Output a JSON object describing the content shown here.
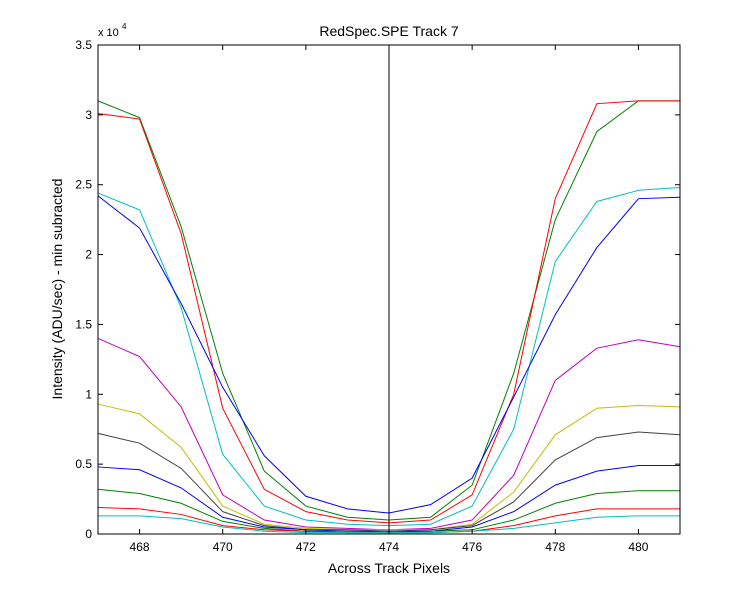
{
  "chart_data": {
    "type": "line",
    "title": "RedSpec.SPE   Track 7",
    "xlabel": "Across Track Pixels",
    "ylabel": "Intensity (ADU/sec) - min subracted",
    "y_exponent_label": "x 10",
    "y_exponent_power": "4",
    "xlim": [
      467,
      481
    ],
    "ylim": [
      0,
      3.5
    ],
    "x_ticks": [
      468,
      470,
      472,
      474,
      476,
      478,
      480
    ],
    "y_ticks": [
      0,
      0.5,
      1,
      1.5,
      2,
      2.5,
      3,
      3.5
    ],
    "y_tick_labels": [
      "0",
      "0.5",
      "1",
      "1.5",
      "2",
      "2.5",
      "3",
      "3.5"
    ],
    "grid": false,
    "vertical_line_x": 474,
    "x": [
      467,
      468,
      469,
      470,
      471,
      472,
      473,
      474,
      475,
      476,
      477,
      478,
      479,
      480,
      481
    ],
    "series": [
      {
        "color": "#008000",
        "values": [
          3.1,
          2.98,
          2.2,
          1.15,
          0.45,
          0.2,
          0.12,
          0.1,
          0.12,
          0.35,
          1.15,
          2.25,
          2.88,
          3.1,
          3.1
        ]
      },
      {
        "color": "#ff0000",
        "values": [
          3.01,
          2.97,
          2.15,
          0.9,
          0.32,
          0.16,
          0.1,
          0.08,
          0.1,
          0.28,
          1.0,
          2.4,
          3.08,
          3.1,
          3.1
        ]
      },
      {
        "color": "#00bfbf",
        "values": [
          2.44,
          2.32,
          1.62,
          0.57,
          0.2,
          0.1,
          0.07,
          0.06,
          0.07,
          0.2,
          0.75,
          1.95,
          2.38,
          2.46,
          2.48
        ]
      },
      {
        "color": "#0000ff",
        "values": [
          2.42,
          2.19,
          1.65,
          1.05,
          0.56,
          0.27,
          0.18,
          0.15,
          0.21,
          0.4,
          0.98,
          1.57,
          2.05,
          2.4,
          2.41
        ]
      },
      {
        "color": "#bf00bf",
        "values": [
          1.4,
          1.27,
          0.91,
          0.28,
          0.1,
          0.05,
          0.04,
          0.03,
          0.04,
          0.1,
          0.42,
          1.1,
          1.33,
          1.39,
          1.34
        ]
      },
      {
        "color": "#bfbf00",
        "values": [
          0.93,
          0.86,
          0.62,
          0.2,
          0.07,
          0.04,
          0.03,
          0.03,
          0.03,
          0.07,
          0.3,
          0.71,
          0.9,
          0.92,
          0.91
        ]
      },
      {
        "color": "#404040",
        "values": [
          0.72,
          0.65,
          0.47,
          0.16,
          0.06,
          0.03,
          0.03,
          0.02,
          0.03,
          0.06,
          0.23,
          0.53,
          0.69,
          0.73,
          0.71
        ]
      },
      {
        "color": "#0000ff",
        "values": [
          0.48,
          0.46,
          0.33,
          0.12,
          0.05,
          0.03,
          0.02,
          0.02,
          0.02,
          0.05,
          0.16,
          0.35,
          0.45,
          0.49,
          0.49
        ]
      },
      {
        "color": "#008000",
        "values": [
          0.32,
          0.29,
          0.22,
          0.09,
          0.04,
          0.02,
          0.02,
          0.01,
          0.02,
          0.03,
          0.1,
          0.22,
          0.29,
          0.31,
          0.31
        ]
      },
      {
        "color": "#ff0000",
        "values": [
          0.19,
          0.18,
          0.14,
          0.06,
          0.03,
          0.02,
          0.01,
          0.01,
          0.01,
          0.02,
          0.06,
          0.13,
          0.18,
          0.18,
          0.18
        ]
      },
      {
        "color": "#00bfbf",
        "values": [
          0.13,
          0.13,
          0.11,
          0.05,
          0.02,
          0.01,
          0.01,
          0.01,
          0.01,
          0.02,
          0.04,
          0.08,
          0.12,
          0.13,
          0.13
        ]
      }
    ]
  }
}
